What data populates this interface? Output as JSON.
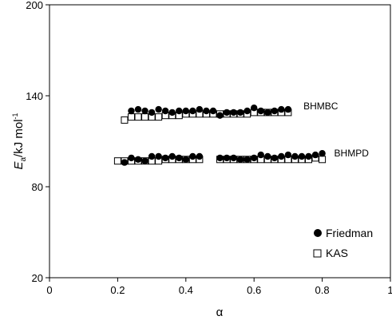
{
  "chart_data": {
    "type": "scatter",
    "xlabel": "α",
    "ylabel": {
      "main": "E",
      "sub": "a",
      "units": "/kJ mol",
      "sup": "-1"
    },
    "xlim": [
      0,
      1
    ],
    "ylim": [
      20,
      200
    ],
    "xticks": [
      0,
      0.2,
      0.4,
      0.6,
      0.8,
      1
    ],
    "xtick_labels": [
      "0",
      "0.2",
      "0.4",
      "0.6",
      "0.8",
      "1"
    ],
    "yticks": [
      20,
      80,
      140,
      200
    ],
    "ytick_labels": [
      "20",
      "80",
      "140",
      "200"
    ],
    "grid": false,
    "legend_position": "bottom-right",
    "annotations": [
      {
        "text": "BHMBC",
        "x": 0.745,
        "y": 131
      },
      {
        "text": "BHMPD",
        "x": 0.835,
        "y": 100
      }
    ],
    "series": [
      {
        "name": "Friedman",
        "marker": "filled-circle",
        "group": "BHMBC",
        "points": [
          [
            0.24,
            130
          ],
          [
            0.26,
            131
          ],
          [
            0.28,
            130
          ],
          [
            0.3,
            129
          ],
          [
            0.32,
            131
          ],
          [
            0.34,
            130
          ],
          [
            0.36,
            129
          ],
          [
            0.38,
            130
          ],
          [
            0.4,
            130
          ],
          [
            0.42,
            130
          ],
          [
            0.44,
            131
          ],
          [
            0.46,
            130
          ],
          [
            0.48,
            130
          ],
          [
            0.5,
            127
          ],
          [
            0.52,
            129
          ],
          [
            0.54,
            129
          ],
          [
            0.56,
            129
          ],
          [
            0.58,
            130
          ],
          [
            0.6,
            132
          ],
          [
            0.62,
            130
          ],
          [
            0.64,
            129
          ],
          [
            0.66,
            130
          ],
          [
            0.68,
            131
          ],
          [
            0.7,
            131
          ]
        ]
      },
      {
        "name": "KAS",
        "marker": "open-square",
        "group": "BHMBC",
        "points": [
          [
            0.22,
            124
          ],
          [
            0.24,
            126
          ],
          [
            0.26,
            126
          ],
          [
            0.28,
            126
          ],
          [
            0.3,
            126
          ],
          [
            0.32,
            126
          ],
          [
            0.34,
            127
          ],
          [
            0.36,
            127
          ],
          [
            0.38,
            127
          ],
          [
            0.4,
            128
          ],
          [
            0.42,
            128
          ],
          [
            0.44,
            128
          ],
          [
            0.46,
            128
          ],
          [
            0.48,
            128
          ],
          [
            0.5,
            128
          ],
          [
            0.52,
            128
          ],
          [
            0.54,
            128
          ],
          [
            0.56,
            128
          ],
          [
            0.58,
            128
          ],
          [
            0.6,
            129
          ],
          [
            0.62,
            129
          ],
          [
            0.64,
            129
          ],
          [
            0.66,
            129
          ],
          [
            0.68,
            129
          ],
          [
            0.7,
            129
          ]
        ]
      },
      {
        "name": "Friedman",
        "marker": "filled-circle",
        "group": "BHMPD",
        "points": [
          [
            0.22,
            96
          ],
          [
            0.24,
            99
          ],
          [
            0.26,
            98
          ],
          [
            0.28,
            97
          ],
          [
            0.3,
            100
          ],
          [
            0.32,
            100
          ],
          [
            0.34,
            99
          ],
          [
            0.36,
            100
          ],
          [
            0.38,
            99
          ],
          [
            0.4,
            98
          ],
          [
            0.42,
            100
          ],
          [
            0.44,
            100
          ],
          [
            0.5,
            99
          ],
          [
            0.52,
            99
          ],
          [
            0.54,
            99
          ],
          [
            0.56,
            98
          ],
          [
            0.58,
            98
          ],
          [
            0.6,
            99
          ],
          [
            0.62,
            101
          ],
          [
            0.64,
            100
          ],
          [
            0.66,
            99
          ],
          [
            0.68,
            100
          ],
          [
            0.7,
            101
          ],
          [
            0.72,
            100
          ],
          [
            0.74,
            100
          ],
          [
            0.76,
            100
          ],
          [
            0.78,
            101
          ],
          [
            0.8,
            102
          ]
        ]
      },
      {
        "name": "KAS",
        "marker": "open-square",
        "group": "BHMPD",
        "points": [
          [
            0.2,
            97
          ],
          [
            0.22,
            97
          ],
          [
            0.24,
            97
          ],
          [
            0.26,
            97
          ],
          [
            0.28,
            97
          ],
          [
            0.3,
            97
          ],
          [
            0.32,
            97
          ],
          [
            0.34,
            98
          ],
          [
            0.36,
            98
          ],
          [
            0.38,
            98
          ],
          [
            0.4,
            98
          ],
          [
            0.42,
            98
          ],
          [
            0.44,
            98
          ],
          [
            0.5,
            98
          ],
          [
            0.52,
            98
          ],
          [
            0.54,
            98
          ],
          [
            0.56,
            98
          ],
          [
            0.58,
            98
          ],
          [
            0.6,
            98
          ],
          [
            0.62,
            98
          ],
          [
            0.64,
            98
          ],
          [
            0.66,
            98
          ],
          [
            0.68,
            98
          ],
          [
            0.7,
            98
          ],
          [
            0.72,
            98
          ],
          [
            0.74,
            98
          ],
          [
            0.76,
            98
          ],
          [
            0.78,
            99
          ],
          [
            0.8,
            98
          ]
        ]
      }
    ],
    "legend": [
      {
        "label": "Friedman",
        "marker": "filled-circle"
      },
      {
        "label": "KAS",
        "marker": "open-square"
      }
    ]
  }
}
